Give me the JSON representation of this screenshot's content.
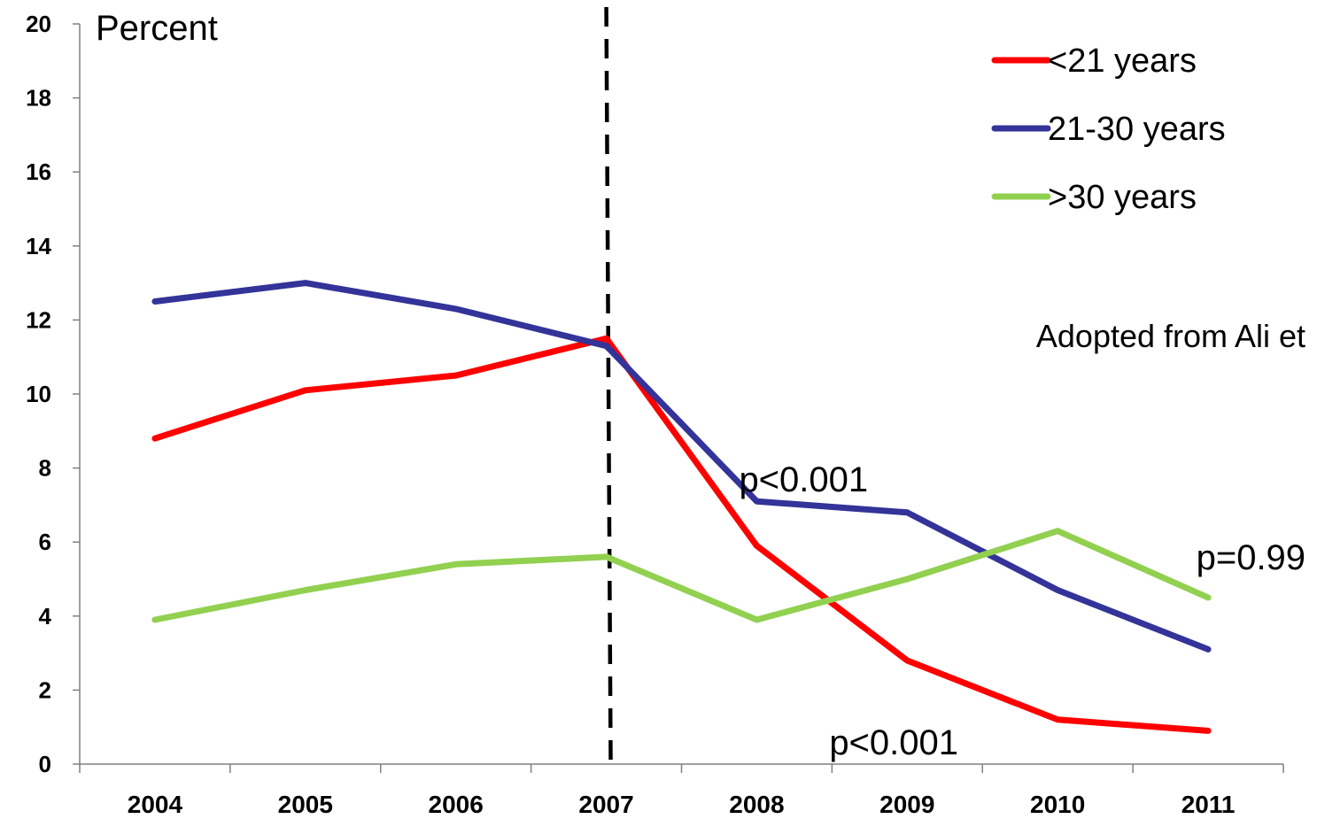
{
  "chart_data": {
    "type": "line",
    "categories": [
      "2004",
      "2005",
      "2006",
      "2007",
      "2008",
      "2009",
      "2010",
      "2011"
    ],
    "series": [
      {
        "name": "<21 years",
        "color": "#ff0000",
        "values": [
          8.8,
          10.1,
          10.5,
          11.5,
          5.9,
          2.8,
          1.2,
          0.9
        ]
      },
      {
        "name": "21-30 years",
        "color": "#333399",
        "values": [
          12.5,
          13.0,
          12.3,
          11.3,
          7.1,
          6.8,
          4.7,
          3.1
        ]
      },
      {
        "name": ">30 years",
        "color": "#92d050",
        "values": [
          3.9,
          4.7,
          5.4,
          5.6,
          3.9,
          5.0,
          6.3,
          4.5
        ]
      }
    ],
    "ylabel": "Percent",
    "ylim": [
      0,
      20
    ],
    "yticks": [
      "0",
      "2",
      "4",
      "6",
      "8",
      "10",
      "12",
      "14",
      "16",
      "18",
      "20"
    ],
    "grid": false,
    "legend_position": "top-right",
    "reference_line": {
      "x": "2007",
      "style": "dashed"
    },
    "annotations": [
      {
        "text": "p<0.001",
        "x": "2008",
        "y": 7.7
      },
      {
        "text": "p=0.99",
        "x": "2011",
        "y": 5.6
      },
      {
        "text": "p<0.001",
        "x": "2009",
        "y": 0.6
      },
      {
        "text": "Adopted from Ali et",
        "x": "2011",
        "y": 11.6
      }
    ]
  }
}
